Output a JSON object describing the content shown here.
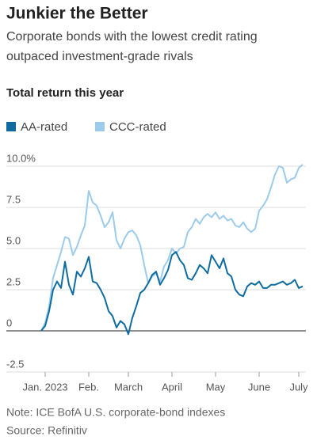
{
  "chart_data": {
    "type": "line",
    "title": "Junkier the Better",
    "subtitle": [
      "Corporate bonds with the lowest credit rating",
      "outpaced investment-grade rivals"
    ],
    "chart_title": "Total return this year",
    "series": [
      {
        "name": "AA-rated",
        "color": "#0f6c9f",
        "values": [
          0,
          0.3,
          1.2,
          2.5,
          3.0,
          2.6,
          4.2,
          2.8,
          2.2,
          3.6,
          3.3,
          3.8,
          4.5,
          3.0,
          2.9,
          2.5,
          2.0,
          1.2,
          0.9,
          0.2,
          0.6,
          0.4,
          -0.2,
          0.8,
          1.5,
          2.3,
          2.5,
          2.9,
          3.4,
          3.6,
          2.8,
          3.2,
          3.7,
          4.6,
          4.8,
          4.3,
          4.0,
          3.2,
          3.1,
          3.5,
          4.0,
          3.8,
          3.5,
          4.6,
          4.2,
          3.8,
          4.4,
          3.5,
          3.3,
          2.5,
          2.2,
          2.1,
          2.7,
          2.9,
          2.8,
          3.0,
          2.6,
          2.6,
          2.8,
          2.8,
          2.9,
          3.0,
          2.8,
          2.9,
          3.1,
          2.6,
          2.7
        ]
      },
      {
        "name": "CCC-rated",
        "color": "#9ccbeb",
        "values": [
          0,
          0.5,
          1.5,
          3.2,
          4.0,
          4.8,
          5.7,
          5.6,
          4.6,
          5.1,
          5.8,
          6.4,
          8.5,
          7.8,
          7.6,
          7.0,
          6.3,
          6.6,
          7.2,
          5.5,
          5.0,
          5.6,
          6.0,
          6.1,
          5.8,
          5.2,
          4.0,
          2.9,
          3.3,
          3.5,
          3.0,
          3.9,
          4.3,
          5.0,
          4.7,
          5.0,
          5.1,
          6.0,
          6.3,
          6.8,
          6.5,
          6.9,
          7.1,
          6.9,
          7.2,
          6.8,
          7.0,
          6.7,
          6.8,
          6.4,
          6.3,
          6.6,
          6.2,
          6.0,
          6.2,
          7.3,
          7.6,
          8.0,
          8.7,
          9.5,
          10.0,
          9.9,
          9.0,
          9.2,
          9.3,
          9.9,
          10.1
        ]
      }
    ],
    "xlim": [
      0,
      66
    ],
    "xticks": [
      {
        "value": 1,
        "label": "Jan. 2023"
      },
      {
        "value": 12,
        "label": "Feb."
      },
      {
        "value": 22,
        "label": "March"
      },
      {
        "value": 33,
        "label": "April"
      },
      {
        "value": 44,
        "label": "May"
      },
      {
        "value": 55,
        "label": "June"
      },
      {
        "value": 65,
        "label": "July"
      }
    ],
    "ylim": [
      -2.5,
      10
    ],
    "yticks": [
      {
        "value": 10,
        "label": "10.0%"
      },
      7.5,
      {
        "value": 5,
        "label": "5.0"
      },
      2.5,
      0,
      -2.5
    ],
    "grid": true,
    "notes": [
      "Note: ICE BofA U.S. corporate-bond indexes",
      "Source: Refinitiv"
    ]
  }
}
